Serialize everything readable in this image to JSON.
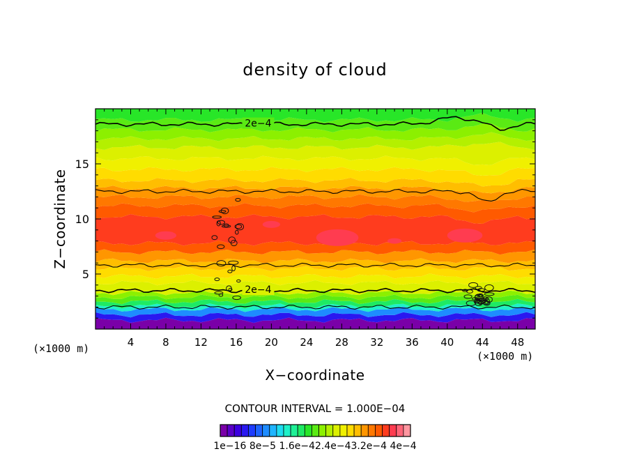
{
  "chart_data": {
    "type": "heatmap",
    "title": "density of cloud",
    "xlabel": "X−coordinate",
    "ylabel": "Z−coordinate",
    "x_unit": "(×1000 m)",
    "xlim": [
      0,
      50
    ],
    "ylim": [
      0,
      20
    ],
    "x_ticks": [
      4,
      8,
      12,
      16,
      20,
      24,
      28,
      32,
      36,
      40,
      44,
      48
    ],
    "y_ticks": [
      5,
      10,
      15
    ],
    "contour_interval_text": "CONTOUR INTERVAL = 1.000E−04",
    "contour_labels": [
      {
        "text": "2e−4",
        "x": 18.5,
        "z": 18.7
      },
      {
        "text": "2e−4",
        "x": 18.5,
        "z": 3.6
      }
    ],
    "colorbar_ticks_text": "1e−16  8e−5  1.6e−42.4e−43.2e−4  4e−4",
    "colorbar_range": [
      1e-16,
      0.0004
    ],
    "colorbar_colors": [
      "#7a00a8",
      "#5a00c8",
      "#3c00e0",
      "#2a18f0",
      "#1e3cff",
      "#1e64ff",
      "#1e8cff",
      "#1eb4ff",
      "#1edcf0",
      "#1ef0c8",
      "#1ef096",
      "#1eea64",
      "#28e628",
      "#5aea14",
      "#8cf000",
      "#b4f000",
      "#dcf000",
      "#f0f000",
      "#ffdc00",
      "#ffbe00",
      "#ff9600",
      "#ff7800",
      "#ff5a00",
      "#ff3c1e",
      "#ff3c50",
      "#ff6478",
      "#ff96a0"
    ],
    "layers_z_to_level": [
      [
        0.0,
        0
      ],
      [
        0.8,
        3
      ],
      [
        1.3,
        6
      ],
      [
        1.8,
        9
      ],
      [
        2.1,
        11
      ],
      [
        2.5,
        13
      ],
      [
        2.9,
        14
      ],
      [
        3.3,
        16
      ],
      [
        4.2,
        17
      ],
      [
        4.8,
        18
      ],
      [
        5.5,
        19
      ],
      [
        6.2,
        20
      ],
      [
        7.0,
        22
      ],
      [
        7.8,
        23
      ],
      [
        10.2,
        22
      ],
      [
        11.2,
        21
      ],
      [
        12.0,
        20
      ],
      [
        12.8,
        19
      ],
      [
        13.5,
        18
      ],
      [
        14.5,
        17
      ],
      [
        15.5,
        16
      ],
      [
        16.5,
        15
      ],
      [
        17.3,
        14
      ],
      [
        18.1,
        13
      ],
      [
        19.0,
        12
      ]
    ],
    "contour_lines_z": [
      18.6,
      12.5,
      5.8,
      3.5,
      2.0
    ]
  }
}
